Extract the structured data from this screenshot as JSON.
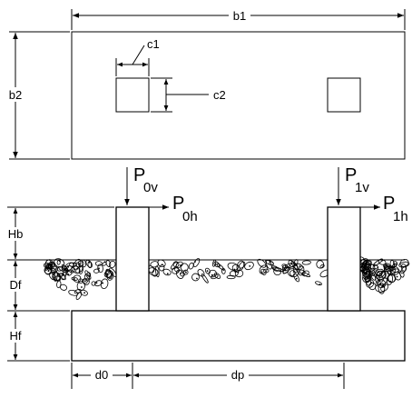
{
  "dimensions": {
    "b1": "b1",
    "b2": "b2",
    "c1": "c1",
    "c2": "c2",
    "hb": "Hb",
    "df": "Df",
    "hf": "Hf",
    "d0": "d0",
    "dp": "dp"
  },
  "loads": {
    "p0v": {
      "main": "P",
      "sub": "0v"
    },
    "p0h": {
      "main": "P",
      "sub": "0h"
    },
    "p1v": {
      "main": "P",
      "sub": "1v"
    },
    "p1h": {
      "main": "P",
      "sub": "1h"
    }
  }
}
